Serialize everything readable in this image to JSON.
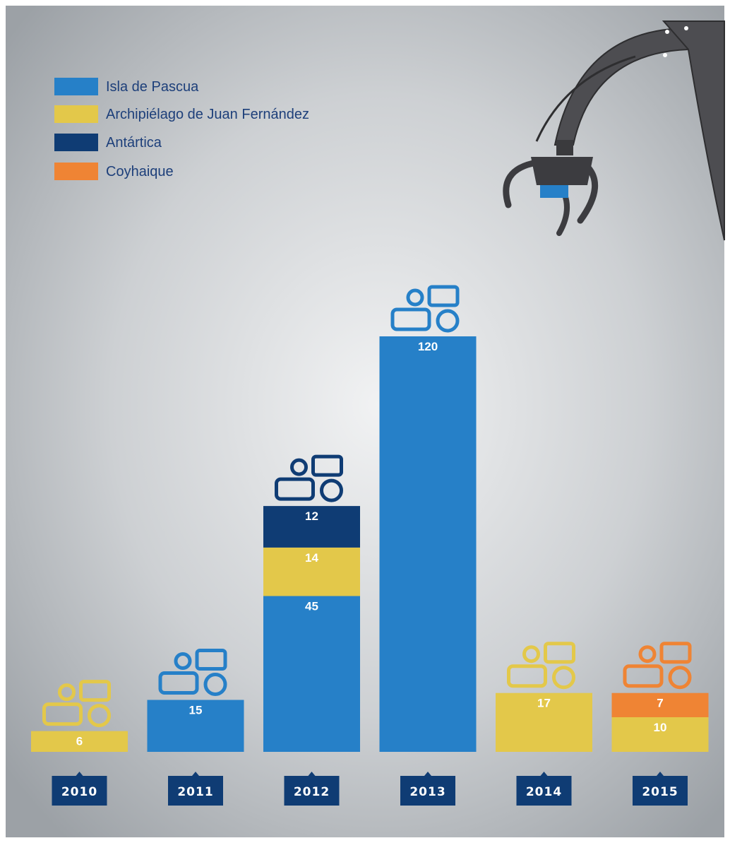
{
  "chart_data": {
    "type": "bar",
    "stacked": true,
    "categories": [
      "2010",
      "2011",
      "2012",
      "2013",
      "2014",
      "2015"
    ],
    "series": [
      {
        "name": "Isla de Pascua",
        "color": "#2680c8",
        "values": [
          0,
          15,
          45,
          120,
          0,
          0
        ]
      },
      {
        "name": "Archipiélago de Juan Fernández",
        "color": "#e3c84a",
        "values": [
          6,
          0,
          14,
          0,
          17,
          10
        ]
      },
      {
        "name": "Antártica",
        "color": "#0f3c74",
        "values": [
          0,
          0,
          12,
          0,
          0,
          0
        ]
      },
      {
        "name": "Coyhaique",
        "color": "#ef8434",
        "values": [
          0,
          0,
          0,
          0,
          0,
          7
        ]
      }
    ],
    "legend": {
      "position": "top-left"
    },
    "grid": false,
    "colors": {
      "year_badge": "#0f3c74",
      "legend_text": "#1d3f7a",
      "label_text": "#ffffff",
      "crane": "#4a4a4e"
    }
  }
}
